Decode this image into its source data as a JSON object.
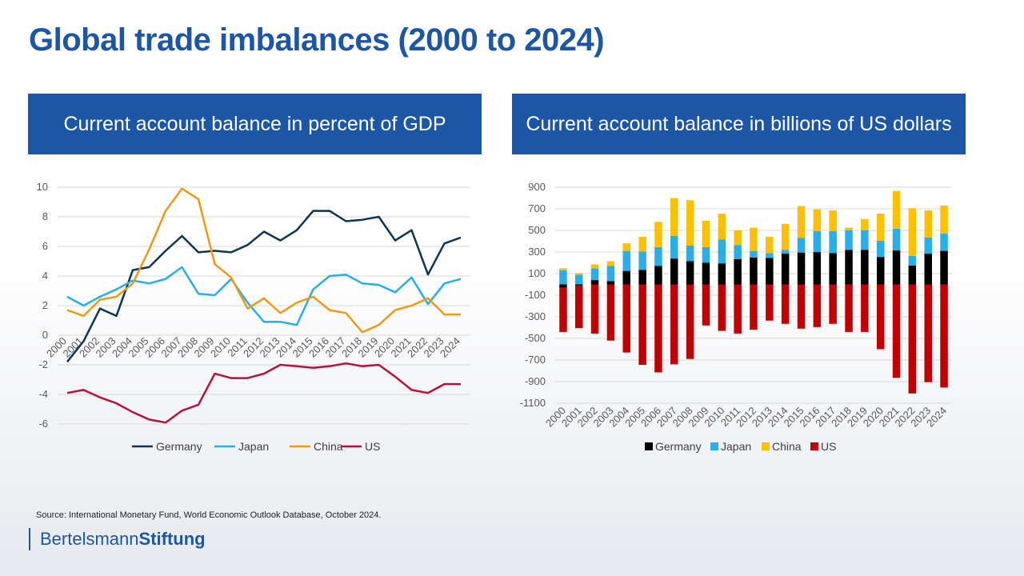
{
  "page": {
    "title": "Global trade imbalances (2000 to 2024)",
    "left_heading": "Current account balance in percent of GDP",
    "right_heading": "Current account balance in billions of US dollars",
    "source": "Source: International Monetary Fund, World Economic Outlook Database, October 2024.",
    "logo_regular": "Bertelsmann",
    "logo_bold": "Stiftung"
  },
  "chart_data": [
    {
      "type": "line",
      "title": "Current account balance in percent of GDP",
      "xlabel": "",
      "ylabel": "",
      "ylim": [
        -6,
        10
      ],
      "yticks": [
        10,
        8,
        6,
        4,
        2,
        0,
        -2,
        -4,
        -6
      ],
      "grid": true,
      "legend": "bottom",
      "x": [
        "2000",
        "2001",
        "2002",
        "2003",
        "2004",
        "2005",
        "2006",
        "2007",
        "2008",
        "2009",
        "2010",
        "2011",
        "2012",
        "2013",
        "2014",
        "2015",
        "2016",
        "2017",
        "2018",
        "2019",
        "2020",
        "2021",
        "2022",
        "2023",
        "2024"
      ],
      "series": [
        {
          "name": "Germany",
          "color": "#0e3552",
          "values": [
            -1.8,
            -0.4,
            1.8,
            1.3,
            4.4,
            4.6,
            5.7,
            6.7,
            5.6,
            5.7,
            5.6,
            6.1,
            7.0,
            6.4,
            7.1,
            8.4,
            8.4,
            7.7,
            7.8,
            8.0,
            6.4,
            7.1,
            4.1,
            6.2,
            6.6
          ]
        },
        {
          "name": "Japan",
          "color": "#29aee8",
          "values": [
            2.6,
            2.0,
            2.6,
            3.1,
            3.7,
            3.5,
            3.8,
            4.6,
            2.8,
            2.7,
            3.8,
            2.2,
            0.9,
            0.9,
            0.7,
            3.1,
            4.0,
            4.1,
            3.5,
            3.4,
            2.9,
            3.9,
            2.1,
            3.5,
            3.8
          ]
        },
        {
          "name": "China",
          "color": "#ed9b14",
          "values": [
            1.7,
            1.3,
            2.4,
            2.6,
            3.5,
            5.8,
            8.4,
            9.9,
            9.2,
            4.8,
            3.9,
            1.8,
            2.5,
            1.5,
            2.2,
            2.6,
            1.7,
            1.5,
            0.2,
            0.7,
            1.7,
            2.0,
            2.5,
            1.4,
            1.4
          ]
        },
        {
          "name": "US",
          "color": "#b8103f",
          "values": [
            -3.9,
            -3.7,
            -4.2,
            -4.6,
            -5.2,
            -5.7,
            -5.9,
            -5.1,
            -4.7,
            -2.6,
            -2.9,
            -2.9,
            -2.6,
            -2.0,
            -2.1,
            -2.2,
            -2.1,
            -1.9,
            -2.1,
            -2.0,
            -2.8,
            -3.7,
            -3.9,
            -3.3,
            -3.3
          ]
        }
      ]
    },
    {
      "type": "bar",
      "stacked": true,
      "title": "Current account balance in billions of US dollars",
      "xlabel": "",
      "ylabel": "",
      "ylim": [
        -1100,
        900
      ],
      "yticks": [
        900,
        700,
        500,
        300,
        100,
        -100,
        -300,
        -500,
        -700,
        -900,
        -1100
      ],
      "grid": true,
      "legend": "bottom",
      "categories": [
        "2000",
        "2001",
        "2002",
        "2003",
        "2004",
        "2005",
        "2006",
        "2007",
        "2008",
        "2009",
        "2010",
        "2011",
        "2012",
        "2013",
        "2014",
        "2015",
        "2016",
        "2017",
        "2018",
        "2019",
        "2020",
        "2021",
        "2022",
        "2023",
        "2024"
      ],
      "series": [
        {
          "name": "Germany",
          "color": "#000000",
          "values": [
            -30,
            -10,
            40,
            30,
            125,
            135,
            170,
            240,
            215,
            200,
            195,
            235,
            250,
            245,
            285,
            295,
            300,
            290,
            320,
            320,
            255,
            315,
            175,
            285,
            310
          ]
        },
        {
          "name": "Japan",
          "color": "#29aee8",
          "values": [
            130,
            90,
            110,
            140,
            185,
            170,
            175,
            210,
            145,
            145,
            220,
            130,
            60,
            45,
            35,
            135,
            195,
            205,
            180,
            180,
            150,
            200,
            90,
            150,
            160
          ]
        },
        {
          "name": "China",
          "color": "#ffc000",
          "values": [
            20,
            15,
            35,
            45,
            70,
            135,
            235,
            350,
            420,
            245,
            240,
            135,
            215,
            150,
            240,
            295,
            200,
            190,
            25,
            105,
            250,
            350,
            440,
            250,
            260
          ]
        },
        {
          "name": "US",
          "color": "#c00000",
          "values": [
            -410,
            -395,
            -455,
            -520,
            -630,
            -745,
            -815,
            -740,
            -690,
            -380,
            -430,
            -455,
            -420,
            -335,
            -365,
            -410,
            -395,
            -365,
            -440,
            -440,
            -600,
            -865,
            -1010,
            -905,
            -955
          ]
        }
      ]
    }
  ]
}
